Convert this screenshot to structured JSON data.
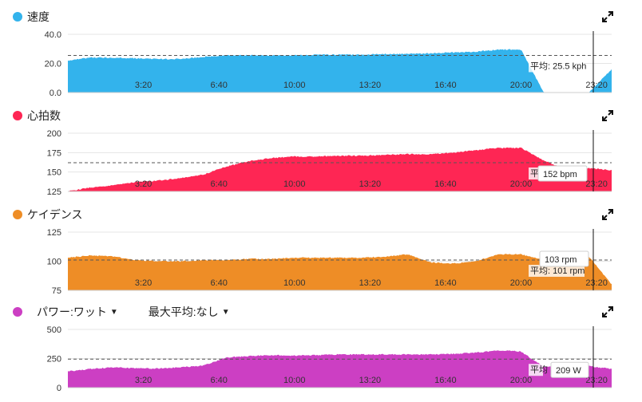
{
  "panels": [
    {
      "id": "speed",
      "title": "速度",
      "color": "#33b3ec",
      "y_ticks": [
        "40.0",
        "20.0",
        "0.0"
      ],
      "ylim": [
        0,
        40
      ],
      "avg_value": 25.5,
      "avg_label": "平均: 25.5 kph",
      "tooltip": ""
    },
    {
      "id": "heart-rate",
      "title": "心拍数",
      "color": "#fe2654",
      "y_ticks": [
        "200",
        "175",
        "150",
        "125"
      ],
      "ylim": [
        125,
        200
      ],
      "avg_value": 162,
      "avg_label": "平均",
      "tooltip": "152 bpm"
    },
    {
      "id": "cadence",
      "title": "ケイデンス",
      "color": "#ee8d26",
      "y_ticks": [
        "125",
        "100",
        "75"
      ],
      "ylim": [
        75,
        125
      ],
      "avg_value": 101,
      "avg_label": "平均: 101 rpm",
      "tooltip": "103 rpm"
    },
    {
      "id": "power",
      "title": "パワー:ワット",
      "color": "#cc3fc3",
      "y_ticks": [
        "500",
        "250",
        "0"
      ],
      "ylim": [
        0,
        500
      ],
      "avg_value": 245,
      "avg_label": "平均",
      "tooltip": "209 W",
      "dropdown_arrow": "▼",
      "max_avg_label": "最大平均:なし"
    }
  ],
  "x_ticks": [
    "3:20",
    "6:40",
    "10:00",
    "13:20",
    "16:40",
    "20:00",
    "23:20"
  ],
  "icons": {
    "expand": "expand-icon",
    "dropdown": "chevron-down-icon"
  },
  "chart_data": [
    {
      "type": "area",
      "title": "速度",
      "x": [
        "0:00",
        "1:00",
        "2:00",
        "3:00",
        "4:00",
        "5:00",
        "6:00",
        "7:00",
        "8:00",
        "9:00",
        "10:00",
        "11:00",
        "12:00",
        "13:00",
        "14:00",
        "15:00",
        "16:00",
        "17:00",
        "18:00",
        "19:00",
        "20:00",
        "21:00",
        "22:00",
        "23:00",
        "24:00"
      ],
      "values": [
        22,
        24,
        24,
        23.5,
        23,
        23,
        24.5,
        25.5,
        25.5,
        25.5,
        25.5,
        26,
        26,
        26,
        26.5,
        26.5,
        27,
        27.5,
        28,
        29.5,
        29.5,
        0,
        0,
        0,
        16
      ],
      "ylim": [
        0,
        40
      ],
      "average": 25.5
    },
    {
      "type": "area",
      "title": "心拍数",
      "x": [
        "0:00",
        "1:00",
        "2:00",
        "3:00",
        "4:00",
        "5:00",
        "6:00",
        "7:00",
        "8:00",
        "9:00",
        "10:00",
        "11:00",
        "12:00",
        "13:00",
        "14:00",
        "15:00",
        "16:00",
        "17:00",
        "18:00",
        "19:00",
        "20:00",
        "21:00",
        "22:00",
        "23:00",
        "24:00"
      ],
      "values": [
        125,
        130,
        133,
        137,
        139,
        142,
        147,
        157,
        164,
        168,
        170,
        170,
        171,
        171,
        172,
        173,
        173,
        175,
        178,
        181,
        181,
        165,
        153,
        155,
        152
      ],
      "ylim": [
        125,
        200
      ],
      "average": 162
    },
    {
      "type": "area",
      "title": "ケイデンス",
      "x": [
        "0:00",
        "1:00",
        "2:00",
        "3:00",
        "4:00",
        "5:00",
        "6:00",
        "7:00",
        "8:00",
        "9:00",
        "10:00",
        "11:00",
        "12:00",
        "13:00",
        "14:00",
        "15:00",
        "16:00",
        "17:00",
        "18:00",
        "19:00",
        "20:00",
        "21:00",
        "22:00",
        "23:00",
        "24:00"
      ],
      "values": [
        103,
        105,
        104,
        101,
        100,
        100,
        101,
        101,
        102,
        102,
        103,
        103,
        103,
        103,
        104,
        106,
        99,
        98,
        100,
        106,
        106,
        101,
        100,
        104,
        80
      ],
      "ylim": [
        75,
        125
      ],
      "average": 101
    },
    {
      "type": "area",
      "title": "パワー:ワット",
      "x": [
        "0:00",
        "1:00",
        "2:00",
        "3:00",
        "4:00",
        "5:00",
        "6:00",
        "7:00",
        "8:00",
        "9:00",
        "10:00",
        "11:00",
        "12:00",
        "13:00",
        "14:00",
        "15:00",
        "16:00",
        "17:00",
        "18:00",
        "19:00",
        "20:00",
        "21:00",
        "22:00",
        "23:00",
        "24:00"
      ],
      "values": [
        140,
        160,
        175,
        165,
        165,
        175,
        190,
        260,
        270,
        280,
        275,
        280,
        285,
        285,
        285,
        285,
        285,
        290,
        300,
        320,
        310,
        180,
        175,
        185,
        160
      ],
      "ylim": [
        0,
        500
      ],
      "average": 245
    }
  ]
}
